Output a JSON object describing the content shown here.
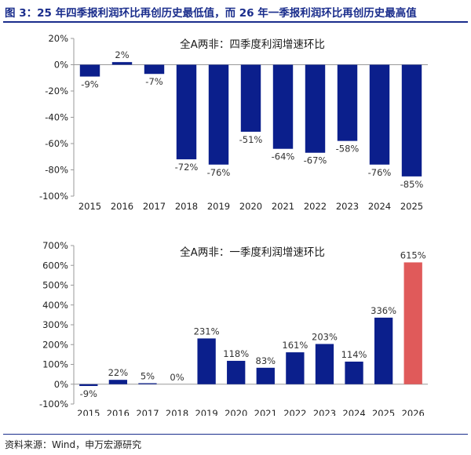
{
  "header": {
    "title": "图 3：25 年四季报利润环比再创历史最低值，而 26 年一季报利润环比再创历史最高值"
  },
  "footer": {
    "source": "资料来源：Wind，申万宏源研究"
  },
  "colors": {
    "title_blue": "#1a2d8c",
    "bar_blue": "#0b1f8c",
    "bar_highlight": "#e05a5a",
    "axis": "#999999"
  },
  "chart_data": [
    {
      "id": "top",
      "type": "bar",
      "title": "全A两非：四季度利润增速环比",
      "categories": [
        "2015",
        "2016",
        "2017",
        "2018",
        "2019",
        "2020",
        "2021",
        "2022",
        "2023",
        "2024",
        "2025"
      ],
      "values": [
        -9,
        2,
        -7,
        -72,
        -76,
        -51,
        -64,
        -67,
        -58,
        -76,
        -85
      ],
      "data_labels": [
        "-9%",
        "2%",
        "-7%",
        "-72%",
        "-76%",
        "-51%",
        "-64%",
        "-67%",
        "-58%",
        "-76%",
        "-85%"
      ],
      "ylim": [
        -100,
        20
      ],
      "yticks": [
        20,
        0,
        -20,
        -40,
        -60,
        -80,
        -100
      ],
      "ytick_labels": [
        "20%",
        "0%",
        "-20%",
        "-40%",
        "-60%",
        "-80%",
        "-100%"
      ],
      "highlight_index": -1,
      "grid": false
    },
    {
      "id": "bottom",
      "type": "bar",
      "title": "全A两非：一季度利润增速环比",
      "categories": [
        "2015",
        "2016",
        "2017",
        "2018",
        "2019",
        "2020",
        "2021",
        "2022",
        "2023",
        "2024",
        "2025",
        "2026"
      ],
      "values": [
        -9,
        22,
        5,
        0,
        231,
        118,
        83,
        161,
        203,
        114,
        336,
        615
      ],
      "data_labels": [
        "-9%",
        "22%",
        "5%",
        "0%",
        "231%",
        "118%",
        "83%",
        "161%",
        "203%",
        "114%",
        "336%",
        "615%"
      ],
      "ylim": [
        -100,
        700
      ],
      "yticks": [
        700,
        600,
        500,
        400,
        300,
        200,
        100,
        0,
        -100
      ],
      "ytick_labels": [
        "700%",
        "600%",
        "500%",
        "400%",
        "300%",
        "200%",
        "100%",
        "0%",
        "-100%"
      ],
      "highlight_index": 11,
      "grid": false
    }
  ]
}
